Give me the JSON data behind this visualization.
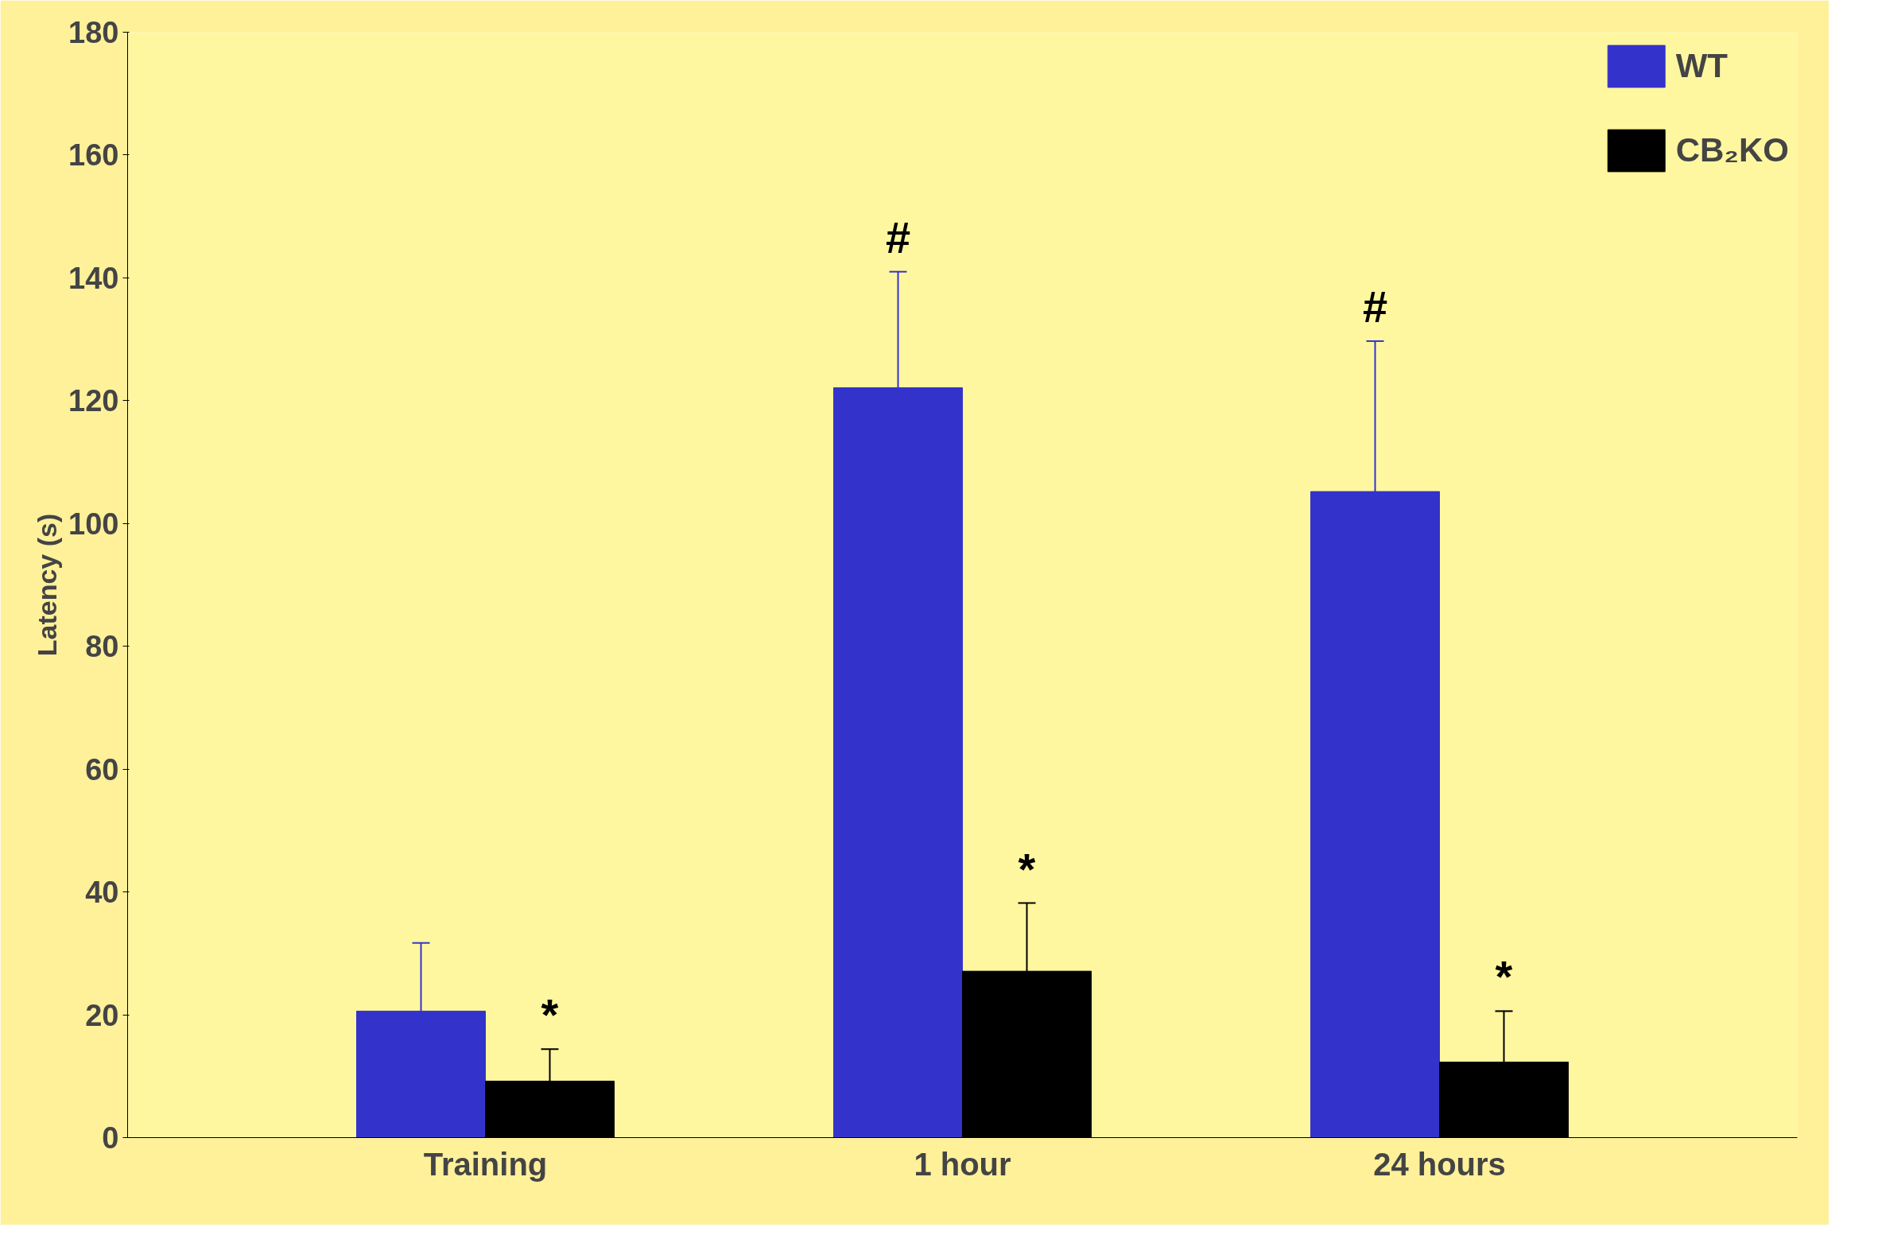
{
  "chart_data": {
    "type": "bar",
    "ylabel": "Latency (s)",
    "categories": [
      "Training",
      "1 hour",
      "24 hours"
    ],
    "series": [
      {
        "name": "WT",
        "color": "#3333cc",
        "values": [
          20.6,
          122.1,
          105.2
        ],
        "errors": [
          [
            20.6,
            31.7
          ],
          [
            122.1,
            141
          ],
          [
            105.2,
            129.7
          ]
        ]
      },
      {
        "name": "CB₂KO",
        "color": "#000000",
        "values": [
          9.2,
          27.1,
          12.3
        ],
        "errors": [
          [
            9.2,
            14.4
          ],
          [
            27.1,
            38.2
          ],
          [
            12.3,
            20.6
          ]
        ]
      }
    ],
    "ylim": [
      0,
      180
    ],
    "yticks": [
      0,
      20,
      40,
      60,
      80,
      100,
      120,
      140,
      160,
      180
    ],
    "grid": false,
    "legend": "top right",
    "annotations": [
      "#",
      "#",
      {
        "text": "*",
        "x": "Training",
        "y": 14.4
      },
      {
        "text": "*",
        "x": "1 hour",
        "y": 38.2
      },
      {
        "text": "*",
        "x": "24 hours",
        "y": 20.6
      }
    ]
  }
}
